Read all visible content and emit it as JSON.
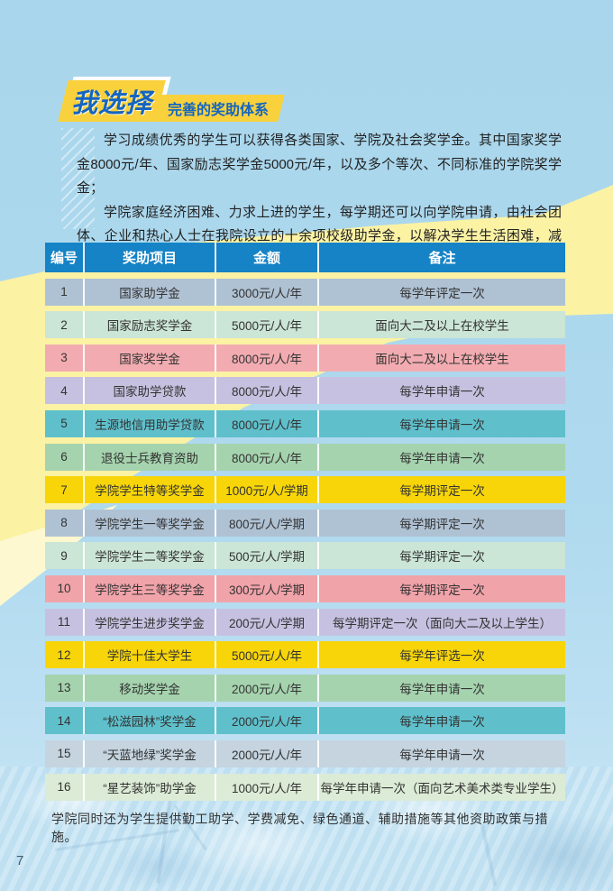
{
  "page": {
    "number": "7",
    "colors": {
      "background_blue": "#aad7ec",
      "band_yellow": "#fbf2a4",
      "badge_yellow": "#f8d13c",
      "title_blue": "#1565c0",
      "table_header_blue": "#1583c6",
      "body_text": "#333333"
    }
  },
  "header": {
    "title": "我选择",
    "subtitle": "完善的奖助体系"
  },
  "intro": {
    "p1": "学习成绩优秀的学生可以获得各类国家、学院及社会奖学金。其中国家奖学金8000元/年、国家励志奖学金5000元/年，以及多个等次、不同标准的学院奖学金；",
    "p2": "学院家庭经济困难、力求上进的学生，每学期还可以向学院申请，由社会团体、企业和热心人士在我院设立的十余项校级助学金，以解决学生生活困难，减轻经济压力，促进他们的学习和发展。"
  },
  "table": {
    "headers": [
      "编号",
      "奖助项目",
      "金额",
      "备注"
    ],
    "rows": [
      {
        "no": "1",
        "project": "国家助学金",
        "amount": "3000元/人/年",
        "note": "每学年评定一次",
        "color": "#afc2d4"
      },
      {
        "no": "2",
        "project": "国家励志奖学金",
        "amount": "5000元/人/年",
        "note": "面向大二及以上在校学生",
        "color": "#cbe5d6"
      },
      {
        "no": "3",
        "project": "国家奖学金",
        "amount": "8000元/人/年",
        "note": "面向大二及以上在校学生",
        "color": "#f2acb1"
      },
      {
        "no": "4",
        "project": "国家助学贷款",
        "amount": "8000元/人/年",
        "note": "每学年申请一次",
        "color": "#c6c1e0"
      },
      {
        "no": "5",
        "project": "生源地信用助学贷款",
        "amount": "8000元/人/年",
        "note": "每学年申请一次",
        "color": "#5fc0cc"
      },
      {
        "no": "6",
        "project": "退役士兵教育资助",
        "amount": "8000元/人/年",
        "note": "每学年申请一次",
        "color": "#a5d3ae"
      },
      {
        "no": "7",
        "project": "学院学生特等奖学金",
        "amount": "1000元/人/学期",
        "note": "每学期评定一次",
        "color": "#f7d508"
      },
      {
        "no": "8",
        "project": "学院学生一等奖学金",
        "amount": "800元/人/学期",
        "note": "每学期评定一次",
        "color": "#afc2d4"
      },
      {
        "no": "9",
        "project": "学院学生二等奖学金",
        "amount": "500元/人/学期",
        "note": "每学期评定一次",
        "color": "#cbe5d6"
      },
      {
        "no": "10",
        "project": "学院学生三等奖学金",
        "amount": "300元/人/学期",
        "note": "每学期评定一次",
        "color": "#f0a3a9"
      },
      {
        "no": "11",
        "project": "学院学生进步奖学金",
        "amount": "200元/人/学期",
        "note": "每学期评定一次（面向大二及以上学生）",
        "color": "#c6c1e0"
      },
      {
        "no": "12",
        "project": "学院十佳大学生",
        "amount": "5000元/人/年",
        "note": "每学年评选一次",
        "color": "#f7d508"
      },
      {
        "no": "13",
        "project": "移动奖学金",
        "amount": "2000元/人/年",
        "note": "每学年申请一次",
        "color": "#a5d3ae"
      },
      {
        "no": "14",
        "project": "“松滋园林”奖学金",
        "amount": "2000元/人/年",
        "note": "每学年申请一次",
        "color": "#5fc0cc"
      },
      {
        "no": "15",
        "project": "“天蓝地绿”奖学金",
        "amount": "2000元/人/年",
        "note": "每学年申请一次",
        "color": "#c5d4df"
      },
      {
        "no": "16",
        "project": "“星艺装饰”助学金",
        "amount": "1000元/人/年",
        "note": "每学年申请一次（面向艺术美术类专业学生）",
        "color": "#dcebd6"
      }
    ]
  },
  "footer": {
    "note": "学院同时还为学生提供勤工助学、学费减免、绿色通道、辅助措施等其他资助政策与措施。"
  }
}
